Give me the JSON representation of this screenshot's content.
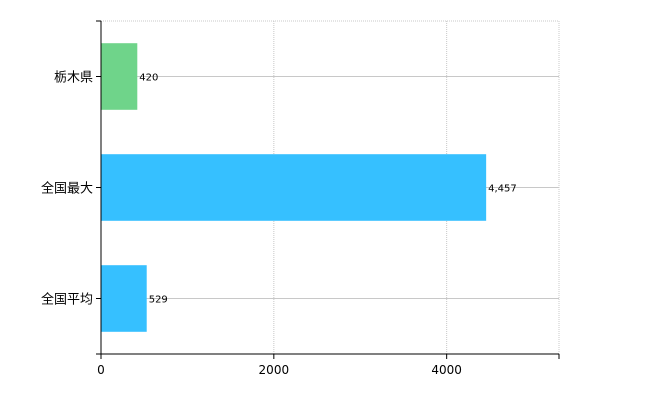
{
  "chart_data": {
    "type": "bar",
    "orientation": "horizontal",
    "categories": [
      "栃木県",
      "全国最大",
      "全国平均"
    ],
    "values": [
      420,
      4457,
      529
    ],
    "value_labels": [
      "420",
      "4,457",
      "529"
    ],
    "colors": [
      "#6fd48a",
      "#36c0ff",
      "#36c0ff"
    ],
    "xlim": [
      0,
      5300
    ],
    "xticks": [
      0,
      2000,
      4000
    ],
    "xtick_labels": [
      "0",
      "2000",
      "4000"
    ],
    "grid": true,
    "legend": "none"
  }
}
